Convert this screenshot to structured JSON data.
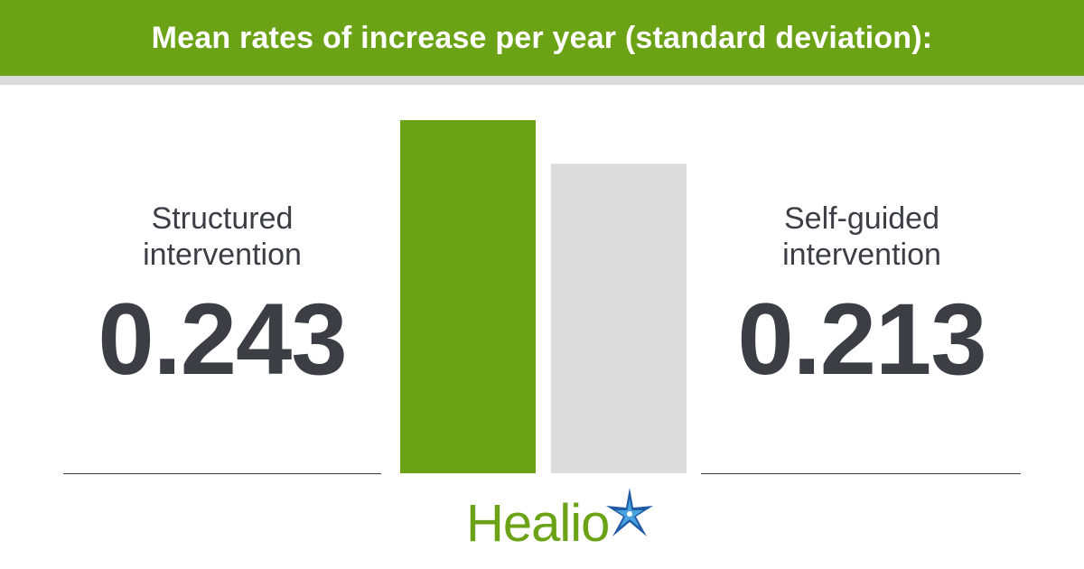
{
  "header": {
    "title": "Mean rates of increase per year (standard deviation):"
  },
  "chart_data": {
    "type": "bar",
    "title": "Mean rates of increase per year (standard deviation):",
    "categories": [
      "Structured intervention",
      "Self-guided intervention"
    ],
    "values": [
      0.243,
      0.213
    ],
    "value_labels": [
      "0.243",
      "0.213"
    ],
    "colors": [
      "#6ca316",
      "#dcdcdc"
    ],
    "ylim": [
      0,
      0.243
    ],
    "grid": false,
    "axes_visible": false,
    "legend": "none"
  },
  "stats": {
    "left": {
      "label_line1": "Structured",
      "label_line2": "intervention",
      "value": "0.243"
    },
    "right": {
      "label_line1": "Self-guided",
      "label_line2": "intervention",
      "value": "0.213"
    }
  },
  "logo": {
    "text": "Healio",
    "icon": "star-icon",
    "colors": {
      "text": "#6ca316",
      "star_dark": "#1f5aa6",
      "star_light": "#4aa3df"
    }
  }
}
